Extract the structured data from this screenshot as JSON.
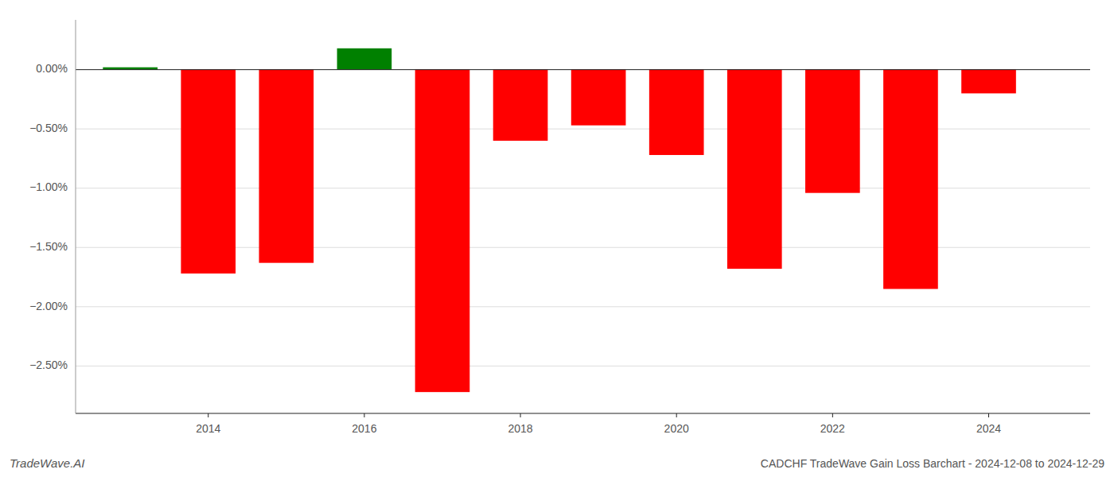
{
  "chart_data": {
    "type": "bar",
    "title": "CADCHF TradeWave Gain Loss Barchart - 2024-12-08 to 2024-12-29",
    "annotations": [
      "TradeWave.AI"
    ],
    "x": [
      2013,
      2014,
      2015,
      2016,
      2017,
      2018,
      2019,
      2020,
      2021,
      2022,
      2023,
      2024
    ],
    "values": [
      0.02,
      -1.72,
      -1.63,
      0.18,
      -2.72,
      -0.6,
      -0.47,
      -0.72,
      -1.68,
      -1.04,
      -1.85,
      -0.2
    ],
    "colors": [
      "#008000",
      "#ff0000",
      "#ff0000",
      "#008000",
      "#ff0000",
      "#ff0000",
      "#ff0000",
      "#ff0000",
      "#ff0000",
      "#ff0000",
      "#ff0000",
      "#ff0000"
    ],
    "xlim": [
      2012.3,
      2025.3
    ],
    "xticks": [
      2014,
      2016,
      2018,
      2020,
      2022,
      2024
    ],
    "ylim": [
      -2.9,
      0.42
    ],
    "yticks": [
      {
        "value": 0.0,
        "label": "0.00%"
      },
      {
        "value": -0.5,
        "label": "−0.50%"
      },
      {
        "value": -1.0,
        "label": "−1.00%"
      },
      {
        "value": -1.5,
        "label": "−1.50%"
      },
      {
        "value": -2.0,
        "label": "−2.00%"
      },
      {
        "value": -2.5,
        "label": "−2.50%"
      }
    ],
    "grid": true
  }
}
